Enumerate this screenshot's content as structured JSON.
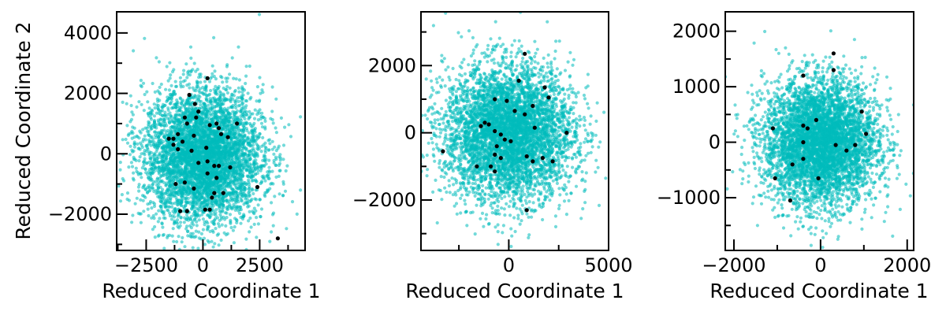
{
  "figure": {
    "ylabel": "Reduced Coordinate 2"
  },
  "colors": {
    "cloud": "#00bcbc",
    "highlight": "#000000",
    "axes": "#000000",
    "background": "#ffffff"
  },
  "chart_data": [
    {
      "type": "scatter",
      "xlabel": "Reduced Coordinate 1",
      "ylabel": "Reduced Coordinate 2",
      "xlim": [
        -3800,
        4500
      ],
      "ylim": [
        -3200,
        4700
      ],
      "xticks": [
        -2500,
        0,
        2500
      ],
      "xtick_labels": [
        "−2500",
        "0",
        "2500"
      ],
      "yticks": [
        -2000,
        0,
        2000,
        4000
      ],
      "ytick_labels": [
        "−2000",
        "0",
        "2000",
        "4000"
      ],
      "grid": false,
      "legend": "none",
      "cloud": {
        "center": [
          0,
          -100
        ],
        "spread": [
          1300,
          1100
        ],
        "approx_count": 5000
      },
      "series": [
        {
          "values": [
            [
              -600,
              1950
            ],
            [
              200,
              2500
            ],
            [
              -350,
              1650
            ],
            [
              -200,
              1400
            ],
            [
              -300,
              1200
            ],
            [
              -800,
              1200
            ],
            [
              -700,
              1000
            ],
            [
              300,
              950
            ],
            [
              600,
              1000
            ],
            [
              700,
              850
            ],
            [
              1500,
              1000
            ],
            [
              -1100,
              650
            ],
            [
              -1300,
              500
            ],
            [
              -1500,
              500
            ],
            [
              -900,
              400
            ],
            [
              -1300,
              300
            ],
            [
              -400,
              600
            ],
            [
              150,
              200
            ],
            [
              -1100,
              150
            ],
            [
              -500,
              100
            ],
            [
              1100,
              550
            ],
            [
              800,
              650
            ],
            [
              200,
              -250
            ],
            [
              -200,
              -300
            ],
            [
              1200,
              -450
            ],
            [
              500,
              -400
            ],
            [
              700,
              -400
            ],
            [
              200,
              -650
            ],
            [
              600,
              -800
            ],
            [
              -1200,
              -1000
            ],
            [
              -800,
              -950
            ],
            [
              -400,
              -1150
            ],
            [
              500,
              -1300
            ],
            [
              900,
              -1300
            ],
            [
              400,
              -1450
            ],
            [
              2400,
              -1100
            ],
            [
              -1000,
              -1900
            ],
            [
              -700,
              -1900
            ],
            [
              100,
              -1850
            ],
            [
              300,
              -1850
            ],
            [
              3300,
              -2800
            ]
          ]
        }
      ]
    },
    {
      "type": "scatter",
      "xlabel": "Reduced Coordinate 1",
      "ylim": [
        -3500,
        3600
      ],
      "xlim": [
        -4400,
        5000
      ],
      "xticks": [
        0,
        5000
      ],
      "xtick_labels": [
        "0",
        "5000"
      ],
      "yticks": [
        -2000,
        0,
        2000
      ],
      "ytick_labels": [
        "−2000",
        "0",
        "2000"
      ],
      "grid": false,
      "legend": "none",
      "cloud": {
        "center": [
          0,
          0
        ],
        "spread": [
          1600,
          1000
        ],
        "approx_count": 5000
      },
      "series": [
        {
          "values": [
            [
              800,
              2350
            ],
            [
              500,
              1550
            ],
            [
              1800,
              1350
            ],
            [
              2000,
              1050
            ],
            [
              -700,
              1000
            ],
            [
              -100,
              950
            ],
            [
              1200,
              800
            ],
            [
              300,
              650
            ],
            [
              800,
              550
            ],
            [
              -1200,
              300
            ],
            [
              -1000,
              250
            ],
            [
              -1400,
              200
            ],
            [
              -700,
              50
            ],
            [
              -400,
              -50
            ],
            [
              1300,
              150
            ],
            [
              2900,
              0
            ],
            [
              -200,
              -200
            ],
            [
              100,
              -250
            ],
            [
              -3300,
              -550
            ],
            [
              -600,
              -400
            ],
            [
              -700,
              -650
            ],
            [
              -400,
              -750
            ],
            [
              900,
              -700
            ],
            [
              1200,
              -850
            ],
            [
              1700,
              -750
            ],
            [
              2200,
              -850
            ],
            [
              -1600,
              -1000
            ],
            [
              -900,
              -1000
            ],
            [
              -700,
              -1150
            ],
            [
              900,
              -2300
            ]
          ]
        }
      ]
    },
    {
      "type": "scatter",
      "xlabel": "Reduced Coordinate 1",
      "xlim": [
        -2200,
        2150
      ],
      "ylim": [
        -1950,
        2350
      ],
      "xticks": [
        -2000,
        0,
        2000
      ],
      "xtick_labels": [
        "−2000",
        "0",
        "2000"
      ],
      "yticks": [
        -1000,
        0,
        1000,
        2000
      ],
      "ytick_labels": [
        "−1000",
        "0",
        "1000",
        "2000"
      ],
      "grid": false,
      "legend": "none",
      "cloud": {
        "center": [
          0,
          0
        ],
        "spread": [
          650,
          560
        ],
        "approx_count": 5000
      },
      "series": [
        {
          "values": [
            [
              300,
              1600
            ],
            [
              300,
              1300
            ],
            [
              -400,
              1200
            ],
            [
              950,
              550
            ],
            [
              -100,
              400
            ],
            [
              -400,
              300
            ],
            [
              -300,
              250
            ],
            [
              -1100,
              250
            ],
            [
              1050,
              150
            ],
            [
              -400,
              0
            ],
            [
              350,
              -50
            ],
            [
              800,
              -50
            ],
            [
              600,
              -150
            ],
            [
              -400,
              -300
            ],
            [
              -650,
              -400
            ],
            [
              -1050,
              -650
            ],
            [
              -50,
              -650
            ],
            [
              -700,
              -1050
            ]
          ]
        }
      ]
    }
  ]
}
